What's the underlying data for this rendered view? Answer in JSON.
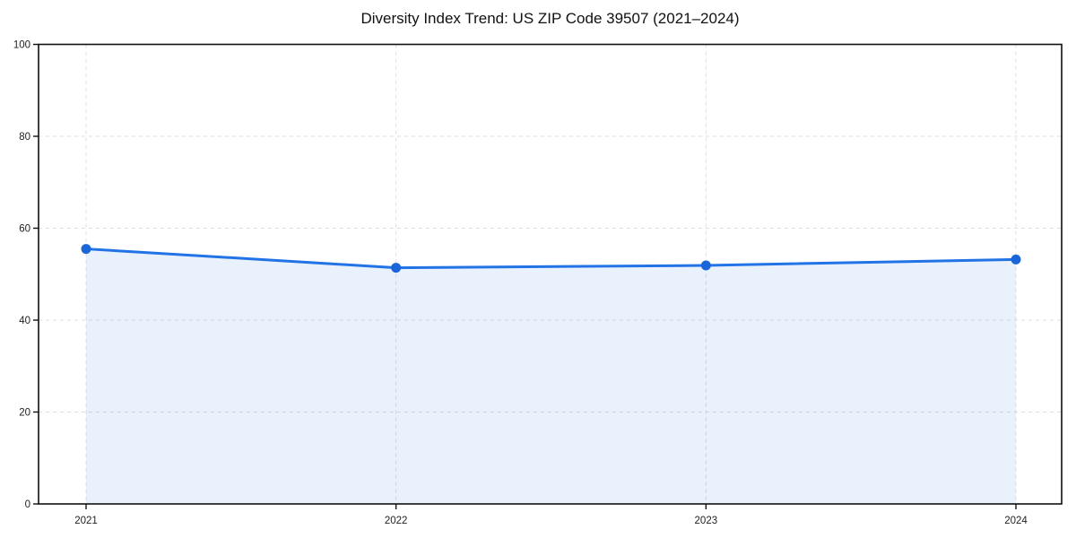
{
  "chart_data": {
    "type": "area",
    "title": "Diversity Index Trend: US ZIP Code 39507 (2021–2024)",
    "categories": [
      "2021",
      "2022",
      "2023",
      "2024"
    ],
    "values": [
      55.5,
      51.4,
      51.9,
      53.2
    ],
    "series_name": "Diversity Index",
    "xlabel": "",
    "ylabel": "",
    "ylim": [
      0,
      100
    ],
    "yticks": [
      0,
      20,
      40,
      60,
      80,
      100
    ],
    "grid": "dashed, horizontal and vertical",
    "legend": "none",
    "colors": {
      "line": "#2273e6",
      "marker": "#1a66d9",
      "fill": "#2273e6",
      "fill_opacity": 0.1,
      "gridline": "#dedede",
      "spine": "#111111",
      "tick_label": "#222222",
      "title": "#111111",
      "background": "#ffffff"
    }
  }
}
